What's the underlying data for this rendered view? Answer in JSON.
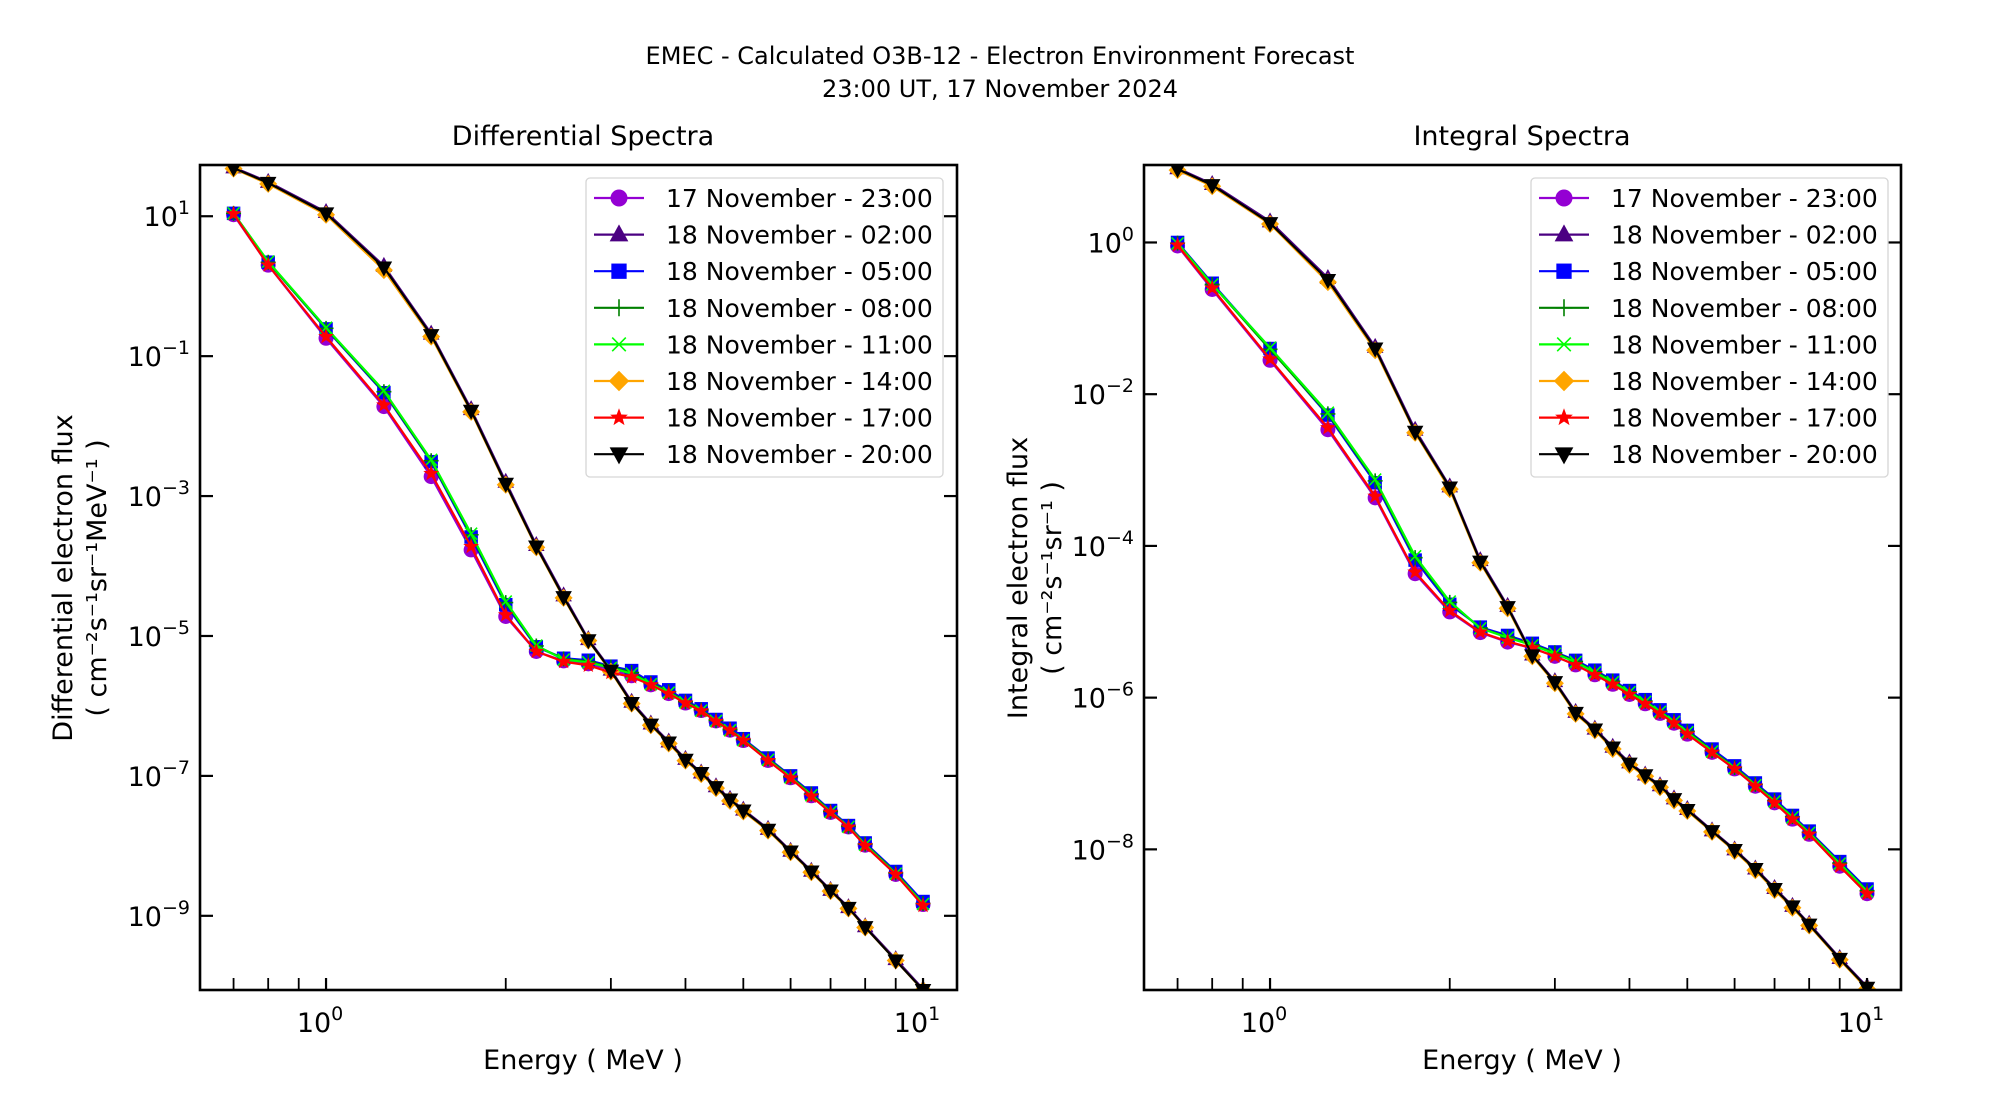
{
  "chart_data": {
    "title": "EMEC - Calculated O3B-12 - Electron Environment Forecast",
    "subtitle": "23:00 UT, 17 November 2024",
    "legend_location": "top-right",
    "series_styles": [
      {
        "name": "17 November - 23:00",
        "color": "#9400d3",
        "marker": "circle"
      },
      {
        "name": "18 November - 02:00",
        "color": "#4b0082",
        "marker": "triangle-up"
      },
      {
        "name": "18 November - 05:00",
        "color": "#0000ff",
        "marker": "square"
      },
      {
        "name": "18 November - 08:00",
        "color": "#008000",
        "marker": "plus"
      },
      {
        "name": "18 November - 11:00",
        "color": "#00ff00",
        "marker": "x"
      },
      {
        "name": "18 November - 14:00",
        "color": "#ffa500",
        "marker": "diamond"
      },
      {
        "name": "18 November - 17:00",
        "color": "#ff0000",
        "marker": "star"
      },
      {
        "name": "18 November - 20:00",
        "color": "#000000",
        "marker": "triangle-down"
      }
    ],
    "energies_mev": [
      0.7,
      0.8,
      1.0,
      1.25,
      1.5,
      1.75,
      2.0,
      2.25,
      2.5,
      2.75,
      3.0,
      3.25,
      3.5,
      3.75,
      4.0,
      4.25,
      4.5,
      4.75,
      5.0,
      5.5,
      6.0,
      6.5,
      7.0,
      7.5,
      8.0,
      9.0,
      10.0
    ],
    "panels": [
      {
        "type": "line",
        "title": "Differential Spectra",
        "xlabel": "Energy ( MeV )",
        "ylabel_line1": "Differential electron flux",
        "ylabel_line2": "( cm⁻²s⁻¹sr⁻¹MeV⁻¹ )",
        "xscale": "log",
        "yscale": "log",
        "xlim": [
          0.615,
          11.4
        ],
        "ylim": [
          8.7e-11,
          54
        ],
        "xticks": [
          {
            "value": 1,
            "label": "10",
            "exp": "0"
          },
          {
            "value": 10,
            "label": "10",
            "exp": "1"
          }
        ],
        "xminor": [
          0.7,
          0.8,
          0.9,
          2,
          3,
          4,
          5,
          6,
          7,
          8,
          9
        ],
        "yticks": [
          {
            "value": 10,
            "label": "10",
            "exp": "1"
          },
          {
            "value": 0.1,
            "label": "10",
            "exp": "−1"
          },
          {
            "value": 0.001,
            "label": "10",
            "exp": "−3"
          },
          {
            "value": 1e-05,
            "label": "10",
            "exp": "−5"
          },
          {
            "value": 1e-07,
            "label": "10",
            "exp": "−7"
          },
          {
            "value": 1e-09,
            "label": "10",
            "exp": "−9"
          }
        ],
        "series": [
          {
            "name": "17 November - 23:00",
            "values": [
              10.5,
              2.0,
              0.18,
              0.019,
              0.0019,
              0.00017,
              1.9e-05,
              6e-06,
              4.4e-06,
              4e-06,
              3.3e-06,
              2.7e-06,
              2e-06,
              1.5e-06,
              1.1e-06,
              8.6e-07,
              6.1e-07,
              4.5e-07,
              3.2e-07,
              1.66e-07,
              9.4e-08,
              5.2e-08,
              3e-08,
              1.86e-08,
              1.02e-08,
              3.9e-09,
              1.45e-09
            ]
          },
          {
            "name": "18 November - 02:00",
            "values": [
              50,
              31,
              11.5,
              1.95,
              0.21,
              0.0175,
              0.0016,
              0.0002,
              3.8e-05,
              9e-06,
              3.3e-06,
              1.15e-06,
              5.6e-07,
              3.1e-07,
              1.75e-07,
              1.12e-07,
              7.1e-08,
              4.7e-08,
              3.3e-08,
              1.75e-08,
              8.5e-09,
              4.4e-09,
              2.35e-09,
              1.33e-09,
              7.1e-10,
              2.4e-10,
              9e-11
            ]
          },
          {
            "name": "18 November - 05:00",
            "values": [
              11,
              2.2,
              0.245,
              0.03,
              0.0031,
              0.00026,
              2.8e-05,
              7e-06,
              4.8e-06,
              4.5e-06,
              3.7e-06,
              3.2e-06,
              2.2e-06,
              1.7e-06,
              1.2e-06,
              9.1e-07,
              6.4e-07,
              4.8e-07,
              3.4e-07,
              1.8e-07,
              1e-07,
              5.7e-08,
              3.2e-08,
              1.95e-08,
              1.1e-08,
              4.3e-09,
              1.6e-09
            ]
          },
          {
            "name": "18 November - 08:00",
            "values": [
              11,
              2.2,
              0.25,
              0.031,
              0.0032,
              0.00028,
              3e-05,
              7.2e-06,
              4.7e-06,
              4.3e-06,
              3.6e-06,
              3e-06,
              2.1e-06,
              1.6e-06,
              1.15e-06,
              8.8e-07,
              6.2e-07,
              4.6e-07,
              3.3e-07,
              1.75e-07,
              9.7e-08,
              5.5e-08,
              3.1e-08,
              1.9e-08,
              1.06e-08,
              4.1e-09,
              1.5e-09
            ]
          },
          {
            "name": "18 November - 11:00",
            "values": [
              11,
              2.25,
              0.255,
              0.032,
              0.0033,
              0.00029,
              3.1e-05,
              7.3e-06,
              4.6e-06,
              4.2e-06,
              3.5e-06,
              2.9e-06,
              2.05e-06,
              1.55e-06,
              1.12e-06,
              8.6e-07,
              6.1e-07,
              4.5e-07,
              3.25e-07,
              1.7e-07,
              9.5e-08,
              5.3e-08,
              3.05e-08,
              1.87e-08,
              1.04e-08,
              4e-09,
              1.48e-09
            ]
          },
          {
            "name": "18 November - 14:00",
            "values": [
              48,
              29,
              10.5,
              1.7,
              0.19,
              0.016,
              0.00145,
              0.000185,
              3.5e-05,
              8.6e-06,
              3.1e-06,
              1.08e-06,
              5.3e-07,
              2.9e-07,
              1.65e-07,
              1.06e-07,
              6.7e-08,
              4.4e-08,
              3.1e-08,
              1.65e-08,
              8.1e-09,
              4.2e-09,
              2.25e-09,
              1.27e-09,
              6.8e-10,
              2.3e-10,
              8.6e-11
            ]
          },
          {
            "name": "18 November - 17:00",
            "values": [
              10.8,
              2.0,
              0.19,
              0.02,
              0.0021,
              0.00019,
              2e-05,
              6e-06,
              4.3e-06,
              3.8e-06,
              3e-06,
              2.6e-06,
              2e-06,
              1.5e-06,
              1.1e-06,
              8.5e-07,
              6e-07,
              4.5e-07,
              3.2e-07,
              1.65e-07,
              9.3e-08,
              5.1e-08,
              3e-08,
              1.85e-08,
              1e-08,
              3.9e-09,
              1.4e-09
            ]
          },
          {
            "name": "18 November - 20:00",
            "values": [
              49,
              30,
              11,
              1.85,
              0.2,
              0.0166,
              0.0015,
              0.00019,
              3.6e-05,
              8.7e-06,
              3.2e-06,
              1.1e-06,
              5.4e-07,
              3e-07,
              1.7e-07,
              1.1e-07,
              6.9e-08,
              4.6e-08,
              3.2e-08,
              1.7e-08,
              8.3e-09,
              4.3e-09,
              2.3e-09,
              1.3e-09,
              6.9e-10,
              2.3e-10,
              8.7e-11
            ]
          }
        ]
      },
      {
        "type": "line",
        "title": "Integral Spectra",
        "xlabel": "Energy ( MeV )",
        "ylabel_line1": "Integral electron flux",
        "ylabel_line2": "( cm⁻²s⁻¹sr⁻¹ )",
        "xscale": "log",
        "yscale": "log",
        "xlim": [
          0.615,
          11.4
        ],
        "ylim": [
          1.4e-10,
          10.5
        ],
        "xticks": [
          {
            "value": 1,
            "label": "10",
            "exp": "0"
          },
          {
            "value": 10,
            "label": "10",
            "exp": "1"
          }
        ],
        "xminor": [
          0.7,
          0.8,
          0.9,
          2,
          3,
          4,
          5,
          6,
          7,
          8,
          9
        ],
        "yticks": [
          {
            "value": 1,
            "label": "10",
            "exp": "0"
          },
          {
            "value": 0.01,
            "label": "10",
            "exp": "−2"
          },
          {
            "value": 0.0001,
            "label": "10",
            "exp": "−4"
          },
          {
            "value": 1e-06,
            "label": "10",
            "exp": "−6"
          },
          {
            "value": 1e-08,
            "label": "10",
            "exp": "−8"
          }
        ],
        "series": [
          {
            "name": "17 November - 23:00",
            "values": [
              0.9,
              0.24,
              0.028,
              0.0034,
              0.00043,
              4.3e-05,
              1.35e-05,
              7.2e-06,
              5.4e-06,
              4.5e-06,
              3.5e-06,
              2.7e-06,
              2e-06,
              1.5e-06,
              1.1e-06,
              8.3e-07,
              6.2e-07,
              4.6e-07,
              3.3e-07,
              1.9e-07,
              1.15e-07,
              6.8e-08,
              4.1e-08,
              2.5e-08,
              1.58e-08,
              6e-09,
              2.6e-09
            ]
          },
          {
            "name": "18 November - 02:00",
            "values": [
              9.5,
              5.9,
              1.9,
              0.34,
              0.042,
              0.0034,
              0.00061,
              6.5e-05,
              1.62e-05,
              3.7e-06,
              1.65e-06,
              6.5e-07,
              3.9e-07,
              2.25e-07,
              1.4e-07,
              9.7e-08,
              7e-08,
              4.7e-08,
              3.4e-08,
              1.78e-08,
              1e-08,
              5.6e-09,
              3.1e-09,
              1.8e-09,
              1.05e-09,
              3.7e-10,
              1.55e-10
            ]
          },
          {
            "name": "18 November - 05:00",
            "values": [
              1.0,
              0.29,
              0.04,
              0.0053,
              0.00068,
              6.5e-05,
              1.7e-05,
              8.5e-06,
              6.6e-06,
              5.2e-06,
              4e-06,
              3.1e-06,
              2.3e-06,
              1.7e-06,
              1.24e-06,
              9.4e-07,
              6.9e-07,
              5.1e-07,
              3.7e-07,
              2.1e-07,
              1.26e-07,
              7.5e-08,
              4.6e-08,
              2.8e-08,
              1.74e-08,
              6.9e-09,
              3e-09
            ]
          },
          {
            "name": "18 November - 08:00",
            "values": [
              0.98,
              0.28,
              0.039,
              0.0055,
              0.00072,
              7e-05,
              1.8e-05,
              8.3e-06,
              6.3e-06,
              5e-06,
              3.9e-06,
              3e-06,
              2.2e-06,
              1.65e-06,
              1.2e-06,
              9e-07,
              6.6e-07,
              4.9e-07,
              3.6e-07,
              2e-07,
              1.2e-07,
              7.2e-08,
              4.4e-08,
              2.7e-08,
              1.68e-08,
              6.6e-09,
              2.85e-09
            ]
          },
          {
            "name": "18 November - 11:00",
            "values": [
              0.97,
              0.28,
              0.041,
              0.0057,
              0.00075,
              7.3e-05,
              1.85e-05,
              8.2e-06,
              6.2e-06,
              4.9e-06,
              3.8e-06,
              2.95e-06,
              2.15e-06,
              1.6e-06,
              1.18e-06,
              8.8e-07,
              6.5e-07,
              4.8e-07,
              3.5e-07,
              1.95e-07,
              1.18e-07,
              7e-08,
              4.3e-08,
              2.65e-08,
              1.65e-08,
              6.5e-09,
              2.8e-09
            ]
          },
          {
            "name": "18 November - 14:00",
            "values": [
              9.0,
              5.5,
              1.75,
              0.3,
              0.038,
              0.0031,
              0.00056,
              6e-05,
              1.5e-05,
              3.5e-06,
              1.55e-06,
              6.1e-07,
              3.7e-07,
              2.1e-07,
              1.3e-07,
              9.2e-08,
              6.6e-08,
              4.4e-08,
              3.2e-08,
              1.7e-08,
              9.5e-09,
              5.3e-09,
              2.9e-09,
              1.7e-09,
              9.9e-10,
              3.5e-10,
              1.45e-10
            ]
          },
          {
            "name": "18 November - 17:00",
            "values": [
              0.92,
              0.25,
              0.029,
              0.0036,
              0.00045,
              4.5e-05,
              1.4e-05,
              7.3e-06,
              5.5e-06,
              4.5e-06,
              3.5e-06,
              2.7e-06,
              2e-06,
              1.5e-06,
              1.1e-06,
              8.3e-07,
              6.2e-07,
              4.6e-07,
              3.3e-07,
              1.9e-07,
              1.15e-07,
              6.8e-08,
              4.1e-08,
              2.5e-08,
              1.58e-08,
              6e-09,
              2.6e-09
            ]
          },
          {
            "name": "18 November - 20:00",
            "values": [
              9.3,
              5.7,
              1.8,
              0.32,
              0.04,
              0.0032,
              0.00059,
              6.2e-05,
              1.56e-05,
              3.6e-06,
              1.6e-06,
              6.3e-07,
              3.8e-07,
              2.2e-07,
              1.35e-07,
              9.5e-08,
              6.8e-08,
              4.6e-08,
              3.3e-08,
              1.74e-08,
              9.8e-09,
              5.5e-09,
              3e-09,
              1.77e-09,
              1.02e-09,
              3.6e-10,
              1.5e-10
            ]
          }
        ]
      }
    ]
  }
}
